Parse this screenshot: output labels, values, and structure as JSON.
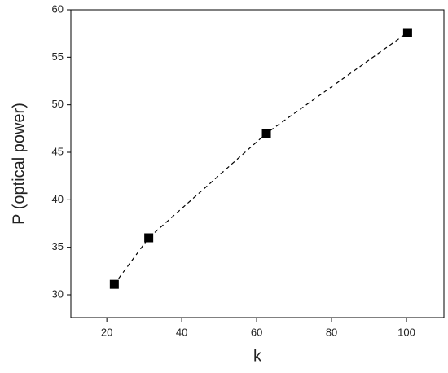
{
  "chart_data": {
    "type": "line",
    "x_label": "k",
    "y_label": "P (optical power)",
    "x": [
      22,
      31.2,
      62.6,
      100.3
    ],
    "values": [
      31.1,
      36,
      47,
      57.6
    ],
    "color": "#000000",
    "xlim": [
      10.4,
      110
    ],
    "ylim": [
      27.6,
      60
    ],
    "xticks": [
      20,
      40,
      60,
      80,
      100
    ],
    "yticks": [
      30,
      35,
      40,
      45,
      50,
      55,
      60
    ]
  }
}
